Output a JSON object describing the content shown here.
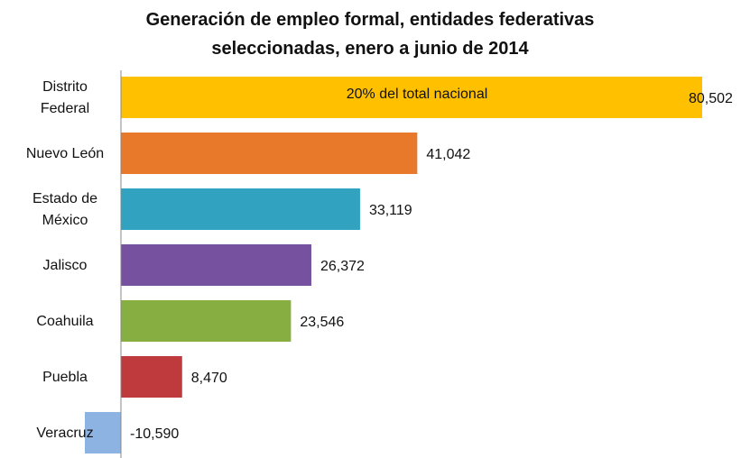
{
  "chart_data": {
    "type": "bar",
    "orientation": "horizontal",
    "title": "Generación de empleo formal, entidades federativas seleccionadas, enero a junio de 2014",
    "categories": [
      "Distrito Federal",
      "Nuevo León",
      "Estado de México",
      "Jalisco",
      "Coahuila",
      "Puebla",
      "Veracruz"
    ],
    "values": [
      80502,
      41042,
      33119,
      26372,
      23546,
      8470,
      -10590
    ],
    "value_labels": [
      "80,502",
      "41,042",
      "33,119",
      "26,372",
      "23,546",
      "8,470",
      "-10,590"
    ],
    "colors": [
      "#ffc000",
      "#e8782a",
      "#31a3c1",
      "#7651a0",
      "#86ae41",
      "#bf3a3c",
      "#8db3e2"
    ],
    "xlim": [
      -5000,
      85000
    ],
    "annotation": "20% del total nacional"
  }
}
